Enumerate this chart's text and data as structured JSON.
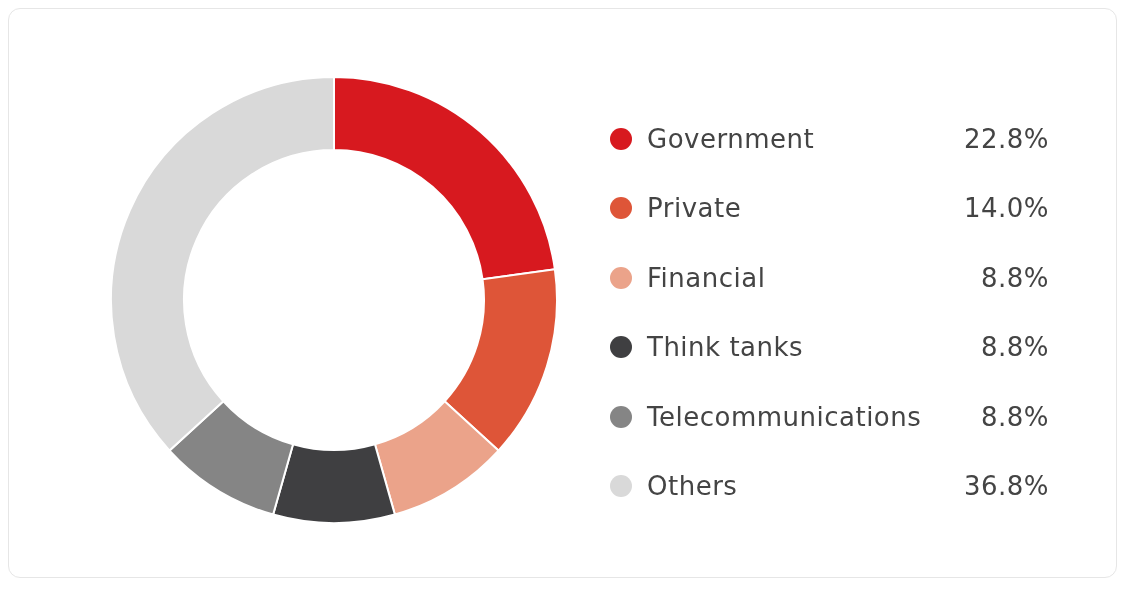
{
  "chart_data": {
    "type": "donut",
    "categories": [
      "Government",
      "Private",
      "Financial",
      "Think tanks",
      "Telecommunications",
      "Others"
    ],
    "values": [
      22.8,
      14.0,
      8.8,
      8.8,
      8.8,
      36.8
    ],
    "colors": [
      "#d7191f",
      "#de5538",
      "#eba38a",
      "#3f3f41",
      "#858585",
      "#d9d9d9"
    ],
    "value_labels": [
      "22.8%",
      "14.0%",
      "8.8%",
      "8.8%",
      "8.8%",
      "36.8%"
    ],
    "legend": "right"
  }
}
